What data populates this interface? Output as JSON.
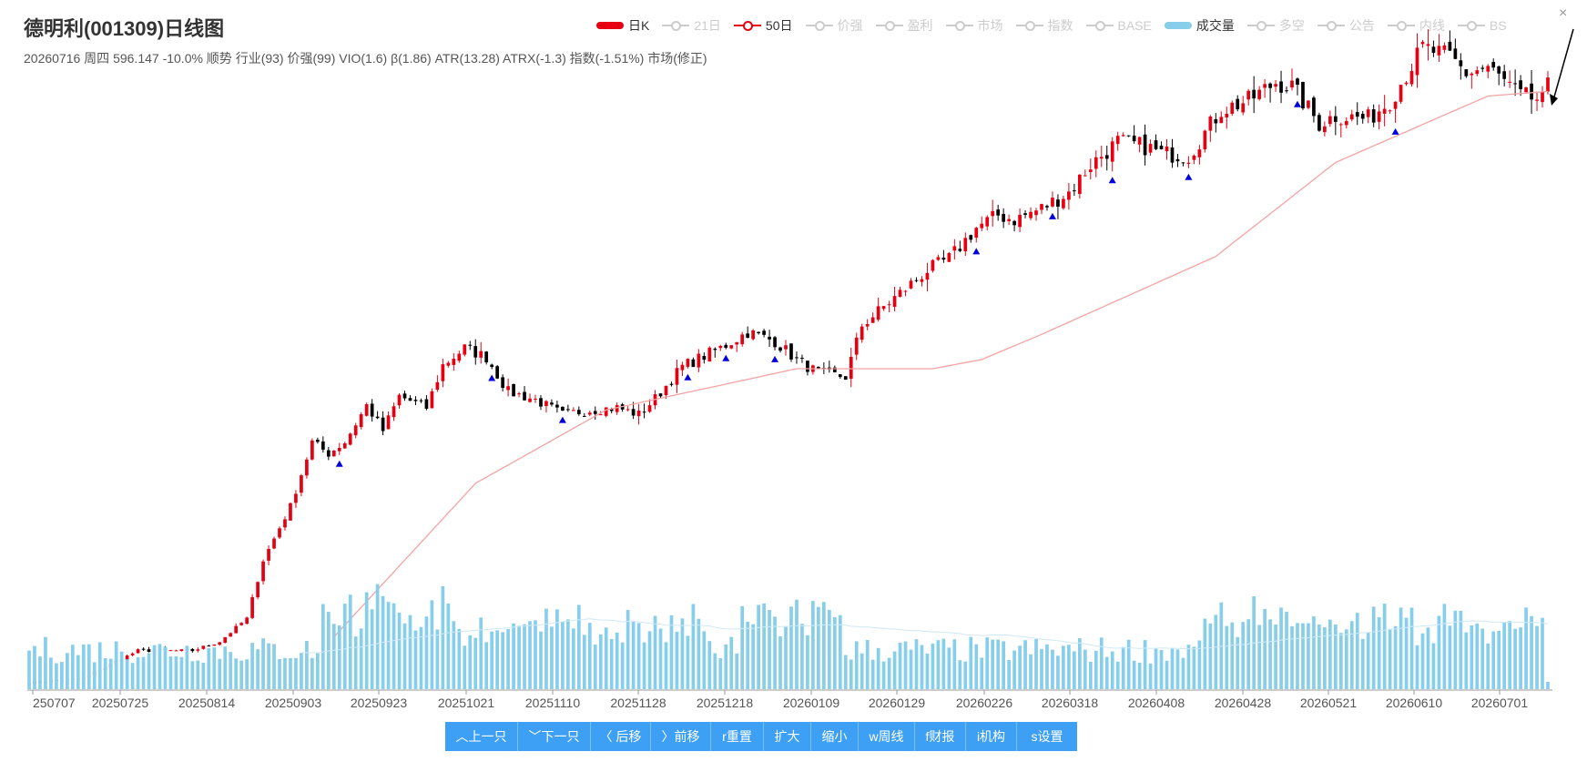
{
  "header": {
    "title": "德明利(001309)日线图",
    "subtitle": "20260716 周四 596.147 -10.0% 顺势 行业(93) 价强(99) VIO(1.6) β(1.86) ATR(13.28) ATRX(-1.3) 指数(-1.51%) 市场(修正)",
    "close_label": "×"
  },
  "legend": [
    {
      "label": "日K",
      "active": true,
      "style": "bar",
      "color": "#e60012"
    },
    {
      "label": "21日",
      "active": false,
      "style": "line"
    },
    {
      "label": "50日",
      "active": true,
      "style": "line",
      "color": "#e60012"
    },
    {
      "label": "价强",
      "active": false,
      "style": "line"
    },
    {
      "label": "盈利",
      "active": false,
      "style": "line"
    },
    {
      "label": "市场",
      "active": false,
      "style": "line"
    },
    {
      "label": "指数",
      "active": false,
      "style": "line"
    },
    {
      "label": "BASE",
      "active": false,
      "style": "line"
    },
    {
      "label": "成交量",
      "active": true,
      "style": "bar",
      "color": "#87ceeb"
    },
    {
      "label": "多空",
      "active": false,
      "style": "line"
    },
    {
      "label": "公告",
      "active": false,
      "style": "line"
    },
    {
      "label": "内线",
      "active": false,
      "style": "line"
    },
    {
      "label": "BS",
      "active": false,
      "style": "line"
    }
  ],
  "toolbar": [
    {
      "label": "︿上一只",
      "name": "prev-stock-button",
      "w": 80
    },
    {
      "label": "﹀下一只",
      "name": "next-stock-button",
      "w": 80
    },
    {
      "label": "〈 后移",
      "name": "move-back-button",
      "w": 66
    },
    {
      "label": "〉前移",
      "name": "move-forward-button",
      "w": 66
    },
    {
      "label": "r重置",
      "name": "reset-button",
      "w": 58
    },
    {
      "label": "扩大",
      "name": "zoom-in-button",
      "w": 52
    },
    {
      "label": "缩小",
      "name": "zoom-out-button",
      "w": 52
    },
    {
      "label": "w周线",
      "name": "weekly-button",
      "w": 62
    },
    {
      "label": "f财报",
      "name": "financial-button",
      "w": 56
    },
    {
      "label": "i机构",
      "name": "institution-button",
      "w": 56
    },
    {
      "label": "s设置",
      "name": "settings-button",
      "w": 66
    }
  ],
  "chart_data": {
    "type": "candlestick",
    "x_tick_labels": [
      "250707",
      "20250725",
      "20250814",
      "20250903",
      "20250923",
      "20251021",
      "20251110",
      "20251128",
      "20251218",
      "20260109",
      "20260129",
      "20260226",
      "20260318",
      "20260408",
      "20260428",
      "20260521",
      "20260610",
      "20260701"
    ],
    "y_axis_labels": "none",
    "colors": {
      "up": "#e60012",
      "down": "#000000",
      "ma50": "#f4a3a3",
      "volume": "#87ceeb",
      "volume_ma": "#cfe8f5",
      "buy_marker": "#0000dd"
    },
    "price_anchors": [
      [
        0,
        68
      ],
      [
        10,
        72
      ],
      [
        20,
        96
      ],
      [
        30,
        96
      ],
      [
        35,
        104
      ],
      [
        40,
        124
      ],
      [
        43,
        175
      ],
      [
        48,
        222
      ],
      [
        52,
        278
      ],
      [
        55,
        268
      ],
      [
        58,
        278
      ],
      [
        62,
        310
      ],
      [
        65,
        288
      ],
      [
        68,
        318
      ],
      [
        73,
        308
      ],
      [
        76,
        345
      ],
      [
        80,
        360
      ],
      [
        84,
        352
      ],
      [
        88,
        322
      ],
      [
        93,
        315
      ],
      [
        98,
        302
      ],
      [
        103,
        306
      ],
      [
        108,
        308
      ],
      [
        112,
        302
      ],
      [
        115,
        316
      ],
      [
        120,
        344
      ],
      [
        127,
        360
      ],
      [
        132,
        374
      ],
      [
        137,
        366
      ],
      [
        141,
        350
      ],
      [
        145,
        338
      ],
      [
        150,
        335
      ],
      [
        153,
        380
      ],
      [
        160,
        408
      ],
      [
        165,
        428
      ],
      [
        169,
        438
      ],
      [
        174,
        465
      ],
      [
        178,
        476
      ],
      [
        181,
        472
      ],
      [
        186,
        482
      ],
      [
        191,
        496
      ],
      [
        195,
        520
      ],
      [
        200,
        540
      ],
      [
        205,
        536
      ],
      [
        208,
        530
      ],
      [
        213,
        528
      ],
      [
        219,
        568
      ],
      [
        224,
        576
      ],
      [
        229,
        592
      ],
      [
        232,
        588
      ],
      [
        237,
        556
      ],
      [
        240,
        563
      ],
      [
        246,
        560
      ],
      [
        250,
        576
      ],
      [
        256,
        622
      ],
      [
        261,
        614
      ],
      [
        264,
        600
      ],
      [
        268,
        605
      ],
      [
        274,
        580
      ],
      [
        279,
        575
      ]
    ],
    "ma50_anchors": [
      [
        56,
        108
      ],
      [
        82,
        242
      ],
      [
        106,
        306
      ],
      [
        141,
        342
      ],
      [
        166,
        342
      ],
      [
        175,
        350
      ],
      [
        186,
        372
      ],
      [
        218,
        440
      ],
      [
        240,
        522
      ],
      [
        268,
        580
      ],
      [
        279,
        584
      ]
    ],
    "last_bar": {
      "date": "20260716",
      "close": 596.147,
      "change": "-10.0%"
    },
    "buy_marker_bars": [
      57,
      85,
      98,
      121,
      128,
      137,
      174,
      188,
      199,
      213,
      233,
      251
    ],
    "volume_ma": "faint light-blue line across the volume panel"
  }
}
